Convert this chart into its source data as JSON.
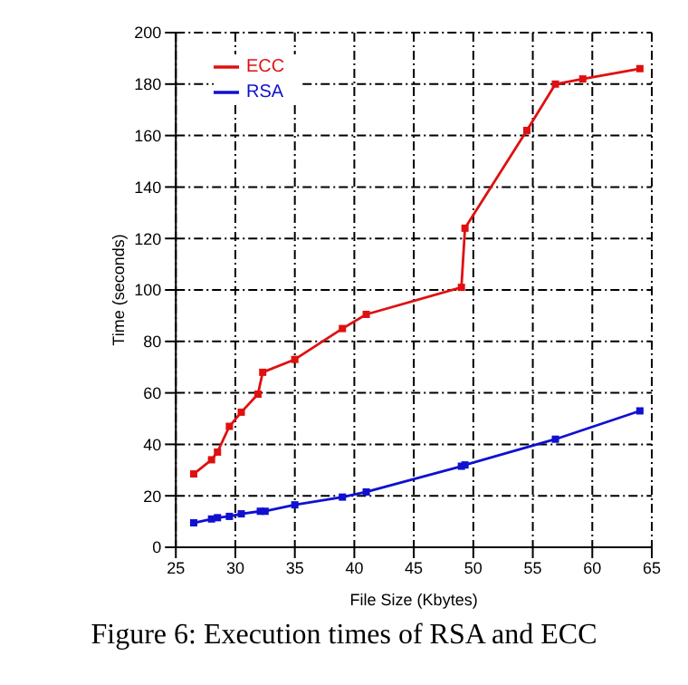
{
  "chart_data": {
    "type": "line",
    "xlabel": "File Size (Kbytes)",
    "ylabel": "Time (seconds)",
    "annotations": [
      "Figure 6: Execution times of RSA and ECC"
    ],
    "xlim": [
      25,
      65
    ],
    "xticks": [
      25,
      30,
      35,
      40,
      45,
      50,
      55,
      60,
      65
    ],
    "ylim": [
      0,
      200
    ],
    "yticks": [
      0,
      20,
      40,
      60,
      80,
      100,
      120,
      140,
      160,
      180,
      200
    ],
    "grid": true,
    "legend": "top left",
    "marker": "square",
    "series": [
      {
        "name": "ECC",
        "color": "#e01010",
        "x": [
          26.5,
          28,
          28.5,
          29.5,
          30.5,
          31.9,
          32.3,
          35,
          39,
          41,
          49,
          49.3,
          54.5,
          56.9,
          59.2,
          64
        ],
        "values": [
          28.5,
          34,
          37,
          47,
          52.5,
          59.5,
          68,
          73,
          85,
          90.5,
          101,
          124,
          162,
          180,
          182,
          186
        ]
      },
      {
        "name": "RSA",
        "color": "#1010d0",
        "x": [
          26.5,
          28,
          28.5,
          29.5,
          30.5,
          32.1,
          32.5,
          35,
          39,
          41,
          49,
          49.3,
          56.9,
          64
        ],
        "values": [
          9.5,
          11,
          11.5,
          12,
          13,
          14,
          14,
          16.5,
          19.5,
          21.5,
          31.5,
          32,
          42,
          53
        ]
      }
    ]
  }
}
